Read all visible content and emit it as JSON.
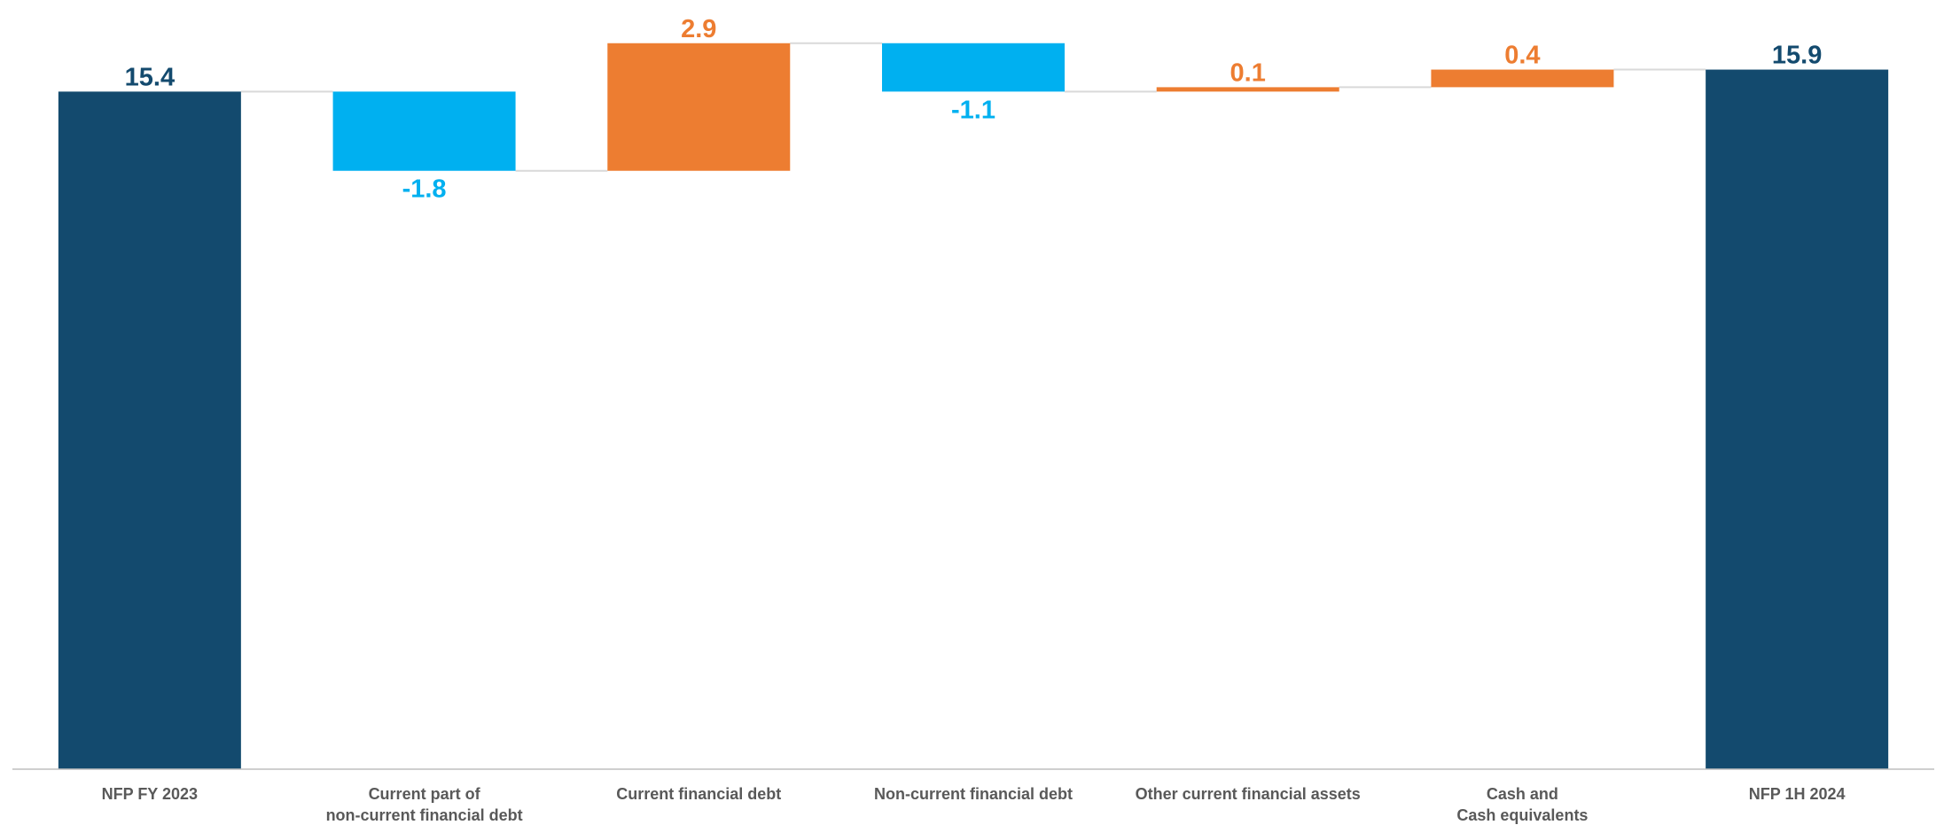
{
  "chart_data": {
    "type": "waterfall",
    "categories": [
      [
        "NFP FY 2023"
      ],
      [
        "Current part of",
        "non-current financial debt"
      ],
      [
        "Current financial debt"
      ],
      [
        "Non-current financial debt"
      ],
      [
        "Other current financial assets"
      ],
      [
        "Cash and",
        "Cash equivalents"
      ],
      [
        "NFP 1H 2024"
      ]
    ],
    "bars": [
      {
        "kind": "total",
        "value": 15.4,
        "label": "15.4"
      },
      {
        "kind": "delta",
        "value": -1.8,
        "label": "-1.8"
      },
      {
        "kind": "delta",
        "value": 2.9,
        "label": "2.9"
      },
      {
        "kind": "delta",
        "value": -1.1,
        "label": "-1.1"
      },
      {
        "kind": "delta",
        "value": 0.1,
        "label": "0.1"
      },
      {
        "kind": "delta",
        "value": 0.4,
        "label": "0.4"
      },
      {
        "kind": "total",
        "value": 15.9,
        "label": "15.9"
      }
    ],
    "ylim": [
      0,
      17.2
    ],
    "colors": {
      "total": "#134a6e",
      "decrease": "#00b0f0",
      "increase": "#ed7d31",
      "connector": "#d9d9d9",
      "axis": "#bfbfbf",
      "category_text": "#595959"
    }
  }
}
